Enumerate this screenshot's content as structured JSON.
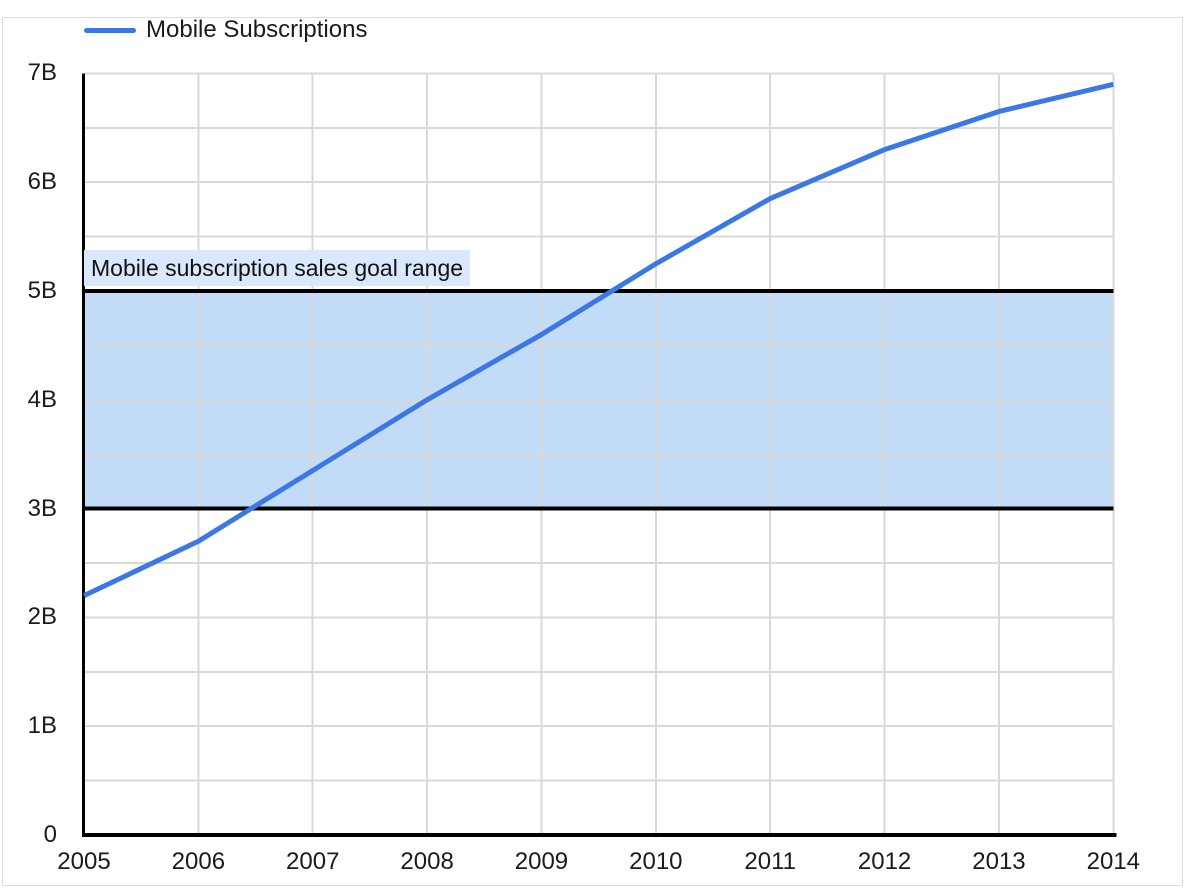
{
  "colors": {
    "line": "#3b78e5",
    "band_fill": "#c2dcf8",
    "band_border": "#000000",
    "band_label_bg": "#d9e8fc",
    "gridline": "#d9d9d9",
    "axis": "#000000",
    "text": "#1b1b1b"
  },
  "legend": {
    "entries": [
      {
        "label": "Mobile Subscriptions",
        "color": "#3b78e5"
      }
    ]
  },
  "chart_data": {
    "type": "line",
    "title": "",
    "xlabel": "",
    "ylabel": "",
    "x": [
      2005,
      2006,
      2007,
      2008,
      2009,
      2010,
      2011,
      2012,
      2013,
      2014
    ],
    "x_tick_labels": [
      "2005",
      "2006",
      "2007",
      "2008",
      "2009",
      "2010",
      "2011",
      "2012",
      "2013",
      "2014"
    ],
    "series": [
      {
        "name": "Mobile Subscriptions",
        "color": "#3b78e5",
        "values": [
          2.2,
          2.7,
          3.35,
          4.0,
          4.6,
          5.25,
          5.85,
          6.3,
          6.65,
          6.9
        ]
      }
    ],
    "ylim": [
      0,
      7
    ],
    "y_ticks": [
      {
        "value": 0,
        "label": "0"
      },
      {
        "value": 1,
        "label": "1B"
      },
      {
        "value": 2,
        "label": "2B"
      },
      {
        "value": 3,
        "label": "3B"
      },
      {
        "value": 4,
        "label": "4B"
      },
      {
        "value": 5,
        "label": "5B"
      },
      {
        "value": 6,
        "label": "6B"
      },
      {
        "value": 7,
        "label": "7B"
      }
    ],
    "grid": {
      "horizontal_step": 0.5,
      "vertical_per_x": true
    },
    "annotation_band": {
      "from": 3,
      "to": 5,
      "label": "Mobile subscription sales goal range"
    },
    "legend_position": "top-left"
  }
}
